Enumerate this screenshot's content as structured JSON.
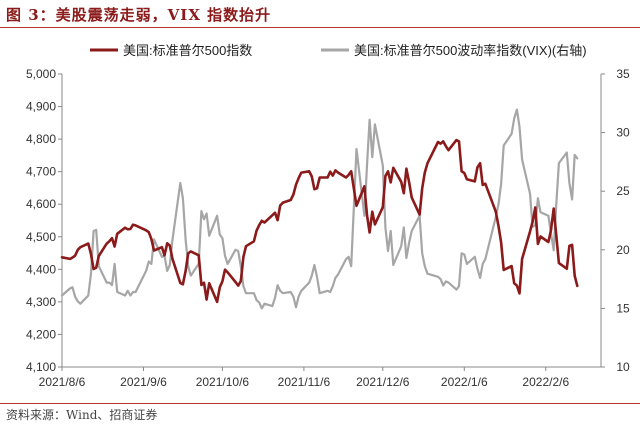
{
  "title": "图 3：美股震荡走弱，VIX 指数抬升",
  "source": "资料来源：Wind、招商证券",
  "chart_data": {
    "type": "line",
    "x_ticks": [
      "2021/8/6",
      "2021/9/6",
      "2021/10/6",
      "2021/11/6",
      "2021/12/6",
      "2022/1/6",
      "2022/2/6"
    ],
    "x_range": [
      "2021-08-06",
      "2022-02-27"
    ],
    "y_left": {
      "min": 4100,
      "max": 5000,
      "ticks": [
        "4,100",
        "4,200",
        "4,300",
        "4,400",
        "4,500",
        "4,600",
        "4,700",
        "4,800",
        "4,900",
        "5,000"
      ]
    },
    "y_right": {
      "min": 10,
      "max": 35,
      "ticks": [
        "10",
        "15",
        "20",
        "25",
        "30",
        "35"
      ]
    },
    "grid": false,
    "legend_position": "top",
    "series": [
      {
        "name": "美国:标准普尔500指数",
        "axis": "left",
        "color": "#8b1a1a",
        "points": [
          [
            "2021-08-06",
            4437
          ],
          [
            "2021-08-09",
            4432
          ],
          [
            "2021-08-10",
            4436
          ],
          [
            "2021-08-11",
            4442
          ],
          [
            "2021-08-12",
            4460
          ],
          [
            "2021-08-13",
            4468
          ],
          [
            "2021-08-16",
            4479
          ],
          [
            "2021-08-17",
            4448
          ],
          [
            "2021-08-18",
            4401
          ],
          [
            "2021-08-19",
            4405
          ],
          [
            "2021-08-20",
            4441
          ],
          [
            "2021-08-23",
            4479
          ],
          [
            "2021-08-24",
            4486
          ],
          [
            "2021-08-25",
            4496
          ],
          [
            "2021-08-26",
            4470
          ],
          [
            "2021-08-27",
            4509
          ],
          [
            "2021-08-30",
            4528
          ],
          [
            "2021-08-31",
            4523
          ],
          [
            "2021-09-01",
            4524
          ],
          [
            "2021-09-02",
            4537
          ],
          [
            "2021-09-03",
            4535
          ],
          [
            "2021-09-07",
            4520
          ],
          [
            "2021-09-08",
            4514
          ],
          [
            "2021-09-09",
            4493
          ],
          [
            "2021-09-10",
            4458
          ],
          [
            "2021-09-13",
            4468
          ],
          [
            "2021-09-14",
            4443
          ],
          [
            "2021-09-15",
            4480
          ],
          [
            "2021-09-16",
            4473
          ],
          [
            "2021-09-17",
            4433
          ],
          [
            "2021-09-20",
            4358
          ],
          [
            "2021-09-21",
            4354
          ],
          [
            "2021-09-22",
            4395
          ],
          [
            "2021-09-23",
            4449
          ],
          [
            "2021-09-24",
            4455
          ],
          [
            "2021-09-27",
            4443
          ],
          [
            "2021-09-28",
            4352
          ],
          [
            "2021-09-29",
            4359
          ],
          [
            "2021-09-30",
            4307
          ],
          [
            "2021-10-01",
            4357
          ],
          [
            "2021-10-04",
            4300
          ],
          [
            "2021-10-05",
            4345
          ],
          [
            "2021-10-06",
            4363
          ],
          [
            "2021-10-07",
            4399
          ],
          [
            "2021-10-08",
            4391
          ],
          [
            "2021-10-11",
            4361
          ],
          [
            "2021-10-12",
            4350
          ],
          [
            "2021-10-13",
            4364
          ],
          [
            "2021-10-14",
            4438
          ],
          [
            "2021-10-15",
            4471
          ],
          [
            "2021-10-18",
            4486
          ],
          [
            "2021-10-19",
            4519
          ],
          [
            "2021-10-20",
            4536
          ],
          [
            "2021-10-21",
            4549
          ],
          [
            "2021-10-22",
            4544
          ],
          [
            "2021-10-25",
            4566
          ],
          [
            "2021-10-26",
            4574
          ],
          [
            "2021-10-27",
            4551
          ],
          [
            "2021-10-28",
            4596
          ],
          [
            "2021-10-29",
            4605
          ],
          [
            "2021-11-01",
            4613
          ],
          [
            "2021-11-02",
            4630
          ],
          [
            "2021-11-03",
            4660
          ],
          [
            "2021-11-04",
            4680
          ],
          [
            "2021-11-05",
            4697
          ],
          [
            "2021-11-08",
            4701
          ],
          [
            "2021-11-09",
            4685
          ],
          [
            "2021-11-10",
            4646
          ],
          [
            "2021-11-11",
            4649
          ],
          [
            "2021-11-12",
            4682
          ],
          [
            "2021-11-15",
            4682
          ],
          [
            "2021-11-16",
            4700
          ],
          [
            "2021-11-17",
            4688
          ],
          [
            "2021-11-18",
            4704
          ],
          [
            "2021-11-19",
            4697
          ],
          [
            "2021-11-22",
            4682
          ],
          [
            "2021-11-23",
            4690
          ],
          [
            "2021-11-24",
            4701
          ],
          [
            "2021-11-26",
            4595
          ],
          [
            "2021-11-29",
            4655
          ],
          [
            "2021-11-30",
            4567
          ],
          [
            "2021-12-01",
            4513
          ],
          [
            "2021-12-02",
            4577
          ],
          [
            "2021-12-03",
            4538
          ],
          [
            "2021-12-06",
            4591
          ],
          [
            "2021-12-07",
            4686
          ],
          [
            "2021-12-08",
            4701
          ],
          [
            "2021-12-09",
            4667
          ],
          [
            "2021-12-10",
            4712
          ],
          [
            "2021-12-13",
            4669
          ],
          [
            "2021-12-14",
            4634
          ],
          [
            "2021-12-15",
            4709
          ],
          [
            "2021-12-16",
            4668
          ],
          [
            "2021-12-17",
            4621
          ],
          [
            "2021-12-20",
            4568
          ],
          [
            "2021-12-21",
            4649
          ],
          [
            "2021-12-22",
            4697
          ],
          [
            "2021-12-23",
            4726
          ],
          [
            "2021-12-27",
            4791
          ],
          [
            "2021-12-28",
            4786
          ],
          [
            "2021-12-29",
            4793
          ],
          [
            "2021-12-30",
            4778
          ],
          [
            "2021-12-31",
            4766
          ],
          [
            "2022-01-03",
            4797
          ],
          [
            "2022-01-04",
            4793
          ],
          [
            "2022-01-05",
            4701
          ],
          [
            "2022-01-06",
            4696
          ],
          [
            "2022-01-07",
            4677
          ],
          [
            "2022-01-10",
            4670
          ],
          [
            "2022-01-11",
            4713
          ],
          [
            "2022-01-12",
            4726
          ],
          [
            "2022-01-13",
            4659
          ],
          [
            "2022-01-14",
            4663
          ],
          [
            "2022-01-18",
            4577
          ],
          [
            "2022-01-19",
            4533
          ],
          [
            "2022-01-20",
            4483
          ],
          [
            "2022-01-21",
            4398
          ],
          [
            "2022-01-24",
            4410
          ],
          [
            "2022-01-25",
            4357
          ],
          [
            "2022-01-26",
            4350
          ],
          [
            "2022-01-27",
            4326
          ],
          [
            "2022-01-28",
            4432
          ],
          [
            "2022-01-31",
            4516
          ],
          [
            "2022-02-01",
            4546
          ],
          [
            "2022-02-02",
            4590
          ],
          [
            "2022-02-03",
            4478
          ],
          [
            "2022-02-04",
            4501
          ],
          [
            "2022-02-07",
            4484
          ],
          [
            "2022-02-08",
            4521
          ],
          [
            "2022-02-09",
            4587
          ],
          [
            "2022-02-10",
            4504
          ],
          [
            "2022-02-11",
            4419
          ],
          [
            "2022-02-14",
            4402
          ],
          [
            "2022-02-15",
            4472
          ],
          [
            "2022-02-16",
            4475
          ],
          [
            "2022-02-17",
            4380
          ],
          [
            "2022-02-18",
            4349
          ]
        ]
      },
      {
        "name": "美国:标准普尔500波动率指数(VIX)(右轴)",
        "axis": "right",
        "color": "#a6a6a6",
        "points": [
          [
            "2021-08-06",
            16.1
          ],
          [
            "2021-08-09",
            16.7
          ],
          [
            "2021-08-10",
            16.8
          ],
          [
            "2021-08-11",
            16.0
          ],
          [
            "2021-08-12",
            15.6
          ],
          [
            "2021-08-13",
            15.4
          ],
          [
            "2021-08-16",
            16.1
          ],
          [
            "2021-08-17",
            17.9
          ],
          [
            "2021-08-18",
            21.6
          ],
          [
            "2021-08-19",
            21.7
          ],
          [
            "2021-08-20",
            18.6
          ],
          [
            "2021-08-23",
            17.2
          ],
          [
            "2021-08-24",
            17.2
          ],
          [
            "2021-08-25",
            17.0
          ],
          [
            "2021-08-26",
            18.8
          ],
          [
            "2021-08-27",
            16.4
          ],
          [
            "2021-08-30",
            16.1
          ],
          [
            "2021-08-31",
            16.5
          ],
          [
            "2021-09-01",
            16.1
          ],
          [
            "2021-09-02",
            16.4
          ],
          [
            "2021-09-03",
            16.4
          ],
          [
            "2021-09-07",
            18.2
          ],
          [
            "2021-09-08",
            19.0
          ],
          [
            "2021-09-09",
            18.8
          ],
          [
            "2021-09-10",
            20.9
          ],
          [
            "2021-09-13",
            19.4
          ],
          [
            "2021-09-14",
            19.5
          ],
          [
            "2021-09-15",
            18.2
          ],
          [
            "2021-09-16",
            18.7
          ],
          [
            "2021-09-17",
            20.8
          ],
          [
            "2021-09-20",
            25.7
          ],
          [
            "2021-09-21",
            24.4
          ],
          [
            "2021-09-22",
            20.9
          ],
          [
            "2021-09-23",
            18.6
          ],
          [
            "2021-09-24",
            17.8
          ],
          [
            "2021-09-27",
            18.8
          ],
          [
            "2021-09-28",
            23.3
          ],
          [
            "2021-09-29",
            22.6
          ],
          [
            "2021-09-30",
            23.1
          ],
          [
            "2021-10-01",
            21.2
          ],
          [
            "2021-10-04",
            22.9
          ],
          [
            "2021-10-05",
            21.3
          ],
          [
            "2021-10-06",
            21.0
          ],
          [
            "2021-10-07",
            19.5
          ],
          [
            "2021-10-08",
            18.8
          ],
          [
            "2021-10-11",
            20.0
          ],
          [
            "2021-10-12",
            19.9
          ],
          [
            "2021-10-13",
            18.6
          ],
          [
            "2021-10-14",
            16.9
          ],
          [
            "2021-10-15",
            16.3
          ],
          [
            "2021-10-18",
            16.3
          ],
          [
            "2021-10-19",
            15.7
          ],
          [
            "2021-10-20",
            15.5
          ],
          [
            "2021-10-21",
            15.0
          ],
          [
            "2021-10-22",
            15.4
          ],
          [
            "2021-10-25",
            15.2
          ],
          [
            "2021-10-26",
            15.9
          ],
          [
            "2021-10-27",
            16.98
          ],
          [
            "2021-10-28",
            16.5
          ],
          [
            "2021-10-29",
            16.3
          ],
          [
            "2021-11-01",
            16.4
          ],
          [
            "2021-11-02",
            16.0
          ],
          [
            "2021-11-03",
            15.1
          ],
          [
            "2021-11-04",
            16.0
          ],
          [
            "2021-11-05",
            16.5
          ],
          [
            "2021-11-08",
            17.2
          ],
          [
            "2021-11-09",
            17.8
          ],
          [
            "2021-11-10",
            18.7
          ],
          [
            "2021-11-11",
            17.7
          ],
          [
            "2021-11-12",
            16.3
          ],
          [
            "2021-11-15",
            16.5
          ],
          [
            "2021-11-16",
            16.4
          ],
          [
            "2021-11-17",
            16.9
          ],
          [
            "2021-11-18",
            17.6
          ],
          [
            "2021-11-19",
            17.9
          ],
          [
            "2021-11-22",
            19.2
          ],
          [
            "2021-11-23",
            19.4
          ],
          [
            "2021-11-24",
            18.6
          ],
          [
            "2021-11-26",
            28.6
          ],
          [
            "2021-11-29",
            22.9
          ],
          [
            "2021-11-30",
            27.2
          ],
          [
            "2021-12-01",
            31.1
          ],
          [
            "2021-12-02",
            27.9
          ],
          [
            "2021-12-03",
            30.7
          ],
          [
            "2021-12-06",
            27.2
          ],
          [
            "2021-12-07",
            21.9
          ],
          [
            "2021-12-08",
            19.9
          ],
          [
            "2021-12-09",
            21.6
          ],
          [
            "2021-12-10",
            18.7
          ],
          [
            "2021-12-13",
            20.3
          ],
          [
            "2021-12-14",
            21.9
          ],
          [
            "2021-12-15",
            19.3
          ],
          [
            "2021-12-16",
            20.6
          ],
          [
            "2021-12-17",
            21.6
          ],
          [
            "2021-12-20",
            22.9
          ],
          [
            "2021-12-21",
            19.7
          ],
          [
            "2021-12-22",
            18.6
          ],
          [
            "2021-12-23",
            17.96
          ],
          [
            "2021-12-27",
            17.7
          ],
          [
            "2021-12-28",
            17.5
          ],
          [
            "2021-12-29",
            16.95
          ],
          [
            "2021-12-30",
            17.3
          ],
          [
            "2021-12-31",
            17.2
          ],
          [
            "2022-01-03",
            16.6
          ],
          [
            "2022-01-04",
            16.9
          ],
          [
            "2022-01-05",
            19.7
          ],
          [
            "2022-01-06",
            19.6
          ],
          [
            "2022-01-07",
            18.8
          ],
          [
            "2022-01-10",
            19.4
          ],
          [
            "2022-01-11",
            18.4
          ],
          [
            "2022-01-12",
            17.6
          ],
          [
            "2022-01-13",
            18.8
          ],
          [
            "2022-01-14",
            19.2
          ],
          [
            "2022-01-18",
            22.8
          ],
          [
            "2022-01-19",
            23.9
          ],
          [
            "2022-01-20",
            25.6
          ],
          [
            "2022-01-21",
            28.9
          ],
          [
            "2022-01-24",
            29.9
          ],
          [
            "2022-01-25",
            31.2
          ],
          [
            "2022-01-26",
            31.96
          ],
          [
            "2022-01-27",
            30.5
          ],
          [
            "2022-01-28",
            27.7
          ],
          [
            "2022-01-31",
            24.8
          ],
          [
            "2022-02-01",
            21.96
          ],
          [
            "2022-02-02",
            22.1
          ],
          [
            "2022-02-03",
            24.4
          ],
          [
            "2022-02-04",
            23.2
          ],
          [
            "2022-02-07",
            22.9
          ],
          [
            "2022-02-08",
            21.4
          ],
          [
            "2022-02-09",
            19.96
          ],
          [
            "2022-02-10",
            23.9
          ],
          [
            "2022-02-11",
            27.4
          ],
          [
            "2022-02-14",
            28.3
          ],
          [
            "2022-02-15",
            25.7
          ],
          [
            "2022-02-16",
            24.3
          ],
          [
            "2022-02-17",
            28.1
          ],
          [
            "2022-02-18",
            27.8
          ]
        ]
      }
    ]
  }
}
